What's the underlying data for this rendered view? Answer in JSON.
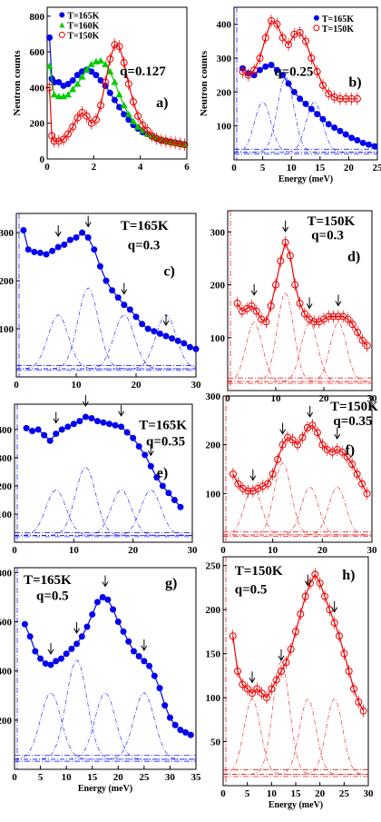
{
  "figure": {
    "ylabel": "Neutron counts",
    "xlabel": "Energy (meV)"
  },
  "chart_data": [
    {
      "panel": "a)",
      "type": "line",
      "annotations": [
        "q=0.127"
      ],
      "xlim": [
        0,
        6
      ],
      "ylim": [
        0,
        850
      ],
      "xticks": [
        0,
        2,
        4,
        6
      ],
      "yticks": [
        0,
        200,
        400,
        600,
        800
      ],
      "xlabel": "",
      "ylabel": "Neutron counts",
      "legend": "top-left",
      "series": [
        {
          "name": "T=165K",
          "color": "#0000ee",
          "marker": "filled-circle",
          "x": [
            0.1,
            0.2,
            0.3,
            0.5,
            0.7,
            0.9,
            1.1,
            1.3,
            1.5,
            1.7,
            1.9,
            2.1,
            2.3,
            2.5,
            2.7,
            2.9,
            3.1,
            3.3,
            3.5,
            3.7,
            3.9,
            4.1,
            4.3,
            4.5,
            4.7,
            4.9,
            5.1,
            5.3,
            5.5,
            5.7,
            5.9
          ],
          "y": [
            680,
            450,
            430,
            430,
            410,
            420,
            440,
            470,
            490,
            500,
            490,
            470,
            440,
            410,
            370,
            330,
            290,
            250,
            220,
            190,
            170,
            150,
            140,
            125,
            115,
            105,
            100,
            95,
            90,
            85,
            80
          ]
        },
        {
          "name": "T=160K",
          "color": "#00cc00",
          "marker": "filled-triangle",
          "x": [
            0.1,
            0.3,
            0.5,
            0.7,
            0.9,
            1.1,
            1.3,
            1.5,
            1.7,
            1.9,
            2.1,
            2.3,
            2.5,
            2.7,
            2.9,
            3.1,
            3.3,
            3.5,
            3.7,
            3.9,
            4.1,
            4.3,
            4.5,
            4.7,
            4.9,
            5.1,
            5.3,
            5.5,
            5.7,
            5.9
          ],
          "y": [
            520,
            360,
            350,
            350,
            360,
            390,
            420,
            460,
            500,
            530,
            545,
            550,
            530,
            490,
            430,
            360,
            300,
            250,
            210,
            180,
            160,
            140,
            130,
            120,
            110,
            100,
            95,
            90,
            85,
            80
          ]
        },
        {
          "name": "T=150K",
          "color": "#ee0000",
          "marker": "open-circle",
          "x": [
            0.1,
            0.2,
            0.3,
            0.5,
            0.7,
            0.9,
            1.1,
            1.3,
            1.5,
            1.7,
            1.9,
            2.1,
            2.3,
            2.5,
            2.7,
            2.9,
            3.1,
            3.3,
            3.5,
            3.7,
            3.9,
            4.1,
            4.3,
            4.5,
            4.7,
            4.9,
            5.1,
            5.3,
            5.5,
            5.7,
            5.9
          ],
          "y": [
            400,
            130,
            100,
            100,
            110,
            140,
            180,
            230,
            260,
            240,
            200,
            220,
            300,
            430,
            560,
            640,
            630,
            540,
            420,
            320,
            240,
            190,
            160,
            130,
            115,
            105,
            100,
            95,
            90,
            85,
            80
          ]
        }
      ]
    },
    {
      "panel": "b)",
      "type": "line",
      "annotations": [
        "q=0.25"
      ],
      "xlim": [
        0,
        25
      ],
      "ylim": [
        0,
        450
      ],
      "xticks": [
        0,
        5,
        10,
        15,
        20,
        25
      ],
      "yticks": [
        100,
        200,
        300,
        400
      ],
      "xlabel": "Energy (meV)",
      "ylabel": "Neutron counts",
      "legend": "top-right",
      "series": [
        {
          "name": "T=165K",
          "color": "#0000ee",
          "marker": "filled-circle",
          "x": [
            1.5,
            2.5,
            3.5,
            4.5,
            5.5,
            6.5,
            7.5,
            8.5,
            9.5,
            10.5,
            11.5,
            12.5,
            13.5,
            14.5,
            15.5,
            16.5,
            17.5,
            18.5,
            19.5,
            20.5,
            21.5,
            22.5,
            23.5,
            24.5
          ],
          "y": [
            270,
            255,
            250,
            265,
            275,
            280,
            265,
            250,
            225,
            200,
            180,
            165,
            150,
            135,
            120,
            105,
            95,
            85,
            75,
            65,
            58,
            50,
            45,
            40
          ]
        },
        {
          "name": "T=150K",
          "color": "#ee0000",
          "marker": "open-circle",
          "x": [
            1.5,
            2.5,
            3.5,
            4.5,
            5.5,
            6.5,
            7.5,
            8.5,
            9.5,
            10.5,
            11.5,
            12.5,
            13.5,
            14.5,
            15.5,
            16.5,
            17.5,
            18.5,
            19.5,
            20.5,
            21.5
          ],
          "y": [
            260,
            250,
            265,
            300,
            360,
            410,
            400,
            360,
            340,
            370,
            375,
            350,
            300,
            260,
            220,
            195,
            185,
            180,
            180,
            180,
            180
          ]
        }
      ]
    },
    {
      "panel": "c)",
      "type": "line",
      "annotations": [
        "T=165K",
        "q=0.3"
      ],
      "xlim": [
        0,
        30
      ],
      "ylim": [
        0,
        340
      ],
      "xticks": [
        0,
        10,
        20,
        30
      ],
      "yticks": [
        100,
        200,
        300
      ],
      "xlabel": "",
      "ylabel": "Neutron counts",
      "arrows_x": [
        7,
        12,
        18,
        25
      ],
      "series": [
        {
          "name": "",
          "color": "#0000ee",
          "marker": "filled-circle",
          "x": [
            1.2,
            2,
            3,
            4,
            5,
            6,
            7,
            8,
            9,
            10,
            11,
            12,
            13,
            14,
            15,
            16,
            17,
            18,
            19,
            20,
            21,
            22,
            23,
            24,
            25,
            26,
            27,
            28,
            29,
            30
          ],
          "y": [
            305,
            265,
            260,
            258,
            255,
            262,
            270,
            275,
            285,
            290,
            300,
            290,
            265,
            230,
            200,
            180,
            165,
            150,
            140,
            125,
            110,
            100,
            95,
            90,
            85,
            80,
            75,
            70,
            62,
            58
          ]
        }
      ]
    },
    {
      "panel": "d)",
      "type": "line",
      "annotations": [
        "T=150K",
        "q=0.3"
      ],
      "xlim": [
        0,
        30
      ],
      "ylim": [
        0,
        340
      ],
      "xticks": [
        0,
        10,
        20,
        30
      ],
      "yticks": [
        100,
        200,
        300
      ],
      "xlabel": "",
      "ylabel": "",
      "arrows_x": [
        5.5,
        12,
        17,
        23
      ],
      "series": [
        {
          "name": "",
          "color": "#ee0000",
          "marker": "open-circle",
          "x": [
            2,
            3,
            4,
            5,
            6,
            7,
            8,
            9,
            10,
            11,
            12,
            13,
            14,
            15,
            16,
            17,
            18,
            19,
            20,
            21,
            22,
            23,
            24,
            25,
            26,
            27,
            28,
            29
          ],
          "y": [
            165,
            150,
            155,
            160,
            150,
            135,
            130,
            160,
            200,
            245,
            280,
            255,
            200,
            165,
            145,
            135,
            130,
            130,
            135,
            140,
            140,
            140,
            140,
            135,
            125,
            110,
            95,
            85
          ]
        }
      ]
    },
    {
      "panel": "e)",
      "type": "line",
      "annotations": [
        "T=165K",
        "q=0.35"
      ],
      "xlim": [
        0,
        30
      ],
      "ylim": [
        0,
        490
      ],
      "xticks": [
        0,
        10,
        20,
        30
      ],
      "yticks": [
        100,
        200,
        300,
        400
      ],
      "xlabel": "",
      "ylabel": "Neutron counts",
      "arrows_x": [
        7,
        12,
        18,
        23
      ],
      "series": [
        {
          "name": "",
          "color": "#0000ee",
          "marker": "filled-circle",
          "x": [
            2,
            3,
            4,
            5,
            6,
            7,
            8,
            9,
            10,
            11,
            12,
            13,
            14,
            15,
            16,
            17,
            18,
            19,
            20,
            21,
            22,
            23,
            24,
            25,
            26,
            27,
            28
          ],
          "y": [
            405,
            395,
            400,
            380,
            360,
            385,
            400,
            410,
            420,
            430,
            445,
            440,
            430,
            425,
            420,
            415,
            410,
            390,
            370,
            340,
            310,
            270,
            230,
            200,
            175,
            150,
            125
          ]
        }
      ]
    },
    {
      "panel": "f)",
      "type": "line",
      "annotations": [
        "T=150K",
        "q=0.35"
      ],
      "xlim": [
        0,
        30
      ],
      "ylim": [
        0,
        300
      ],
      "xticks": [
        0,
        10,
        20,
        30
      ],
      "yticks": [
        100,
        200,
        300
      ],
      "xlabel": "",
      "ylabel": "",
      "arrows_x": [
        6,
        12,
        17.5,
        23
      ],
      "series": [
        {
          "name": "",
          "color": "#ee0000",
          "marker": "open-circle",
          "x": [
            2,
            3,
            4,
            5,
            6,
            7,
            8,
            9,
            10,
            11,
            12,
            13,
            14,
            15,
            16,
            17,
            18,
            19,
            20,
            21,
            22,
            23,
            24,
            25,
            26,
            27,
            28,
            29
          ],
          "y": [
            140,
            120,
            110,
            105,
            105,
            110,
            115,
            120,
            140,
            170,
            200,
            215,
            210,
            200,
            215,
            235,
            240,
            225,
            200,
            190,
            185,
            190,
            185,
            175,
            160,
            140,
            120,
            100
          ]
        }
      ]
    },
    {
      "panel": "g)",
      "type": "line",
      "annotations": [
        "T=165K",
        "q=0.5"
      ],
      "xlim": [
        0,
        35
      ],
      "ylim": [
        0,
        820
      ],
      "xticks": [
        0,
        5,
        10,
        15,
        20,
        25,
        30,
        35
      ],
      "yticks": [
        200,
        400,
        600,
        800
      ],
      "xlabel": "Energy (meV)",
      "ylabel": "Neutron counts",
      "arrows_x": [
        7,
        12,
        17.5,
        25
      ],
      "series": [
        {
          "name": "",
          "color": "#0000ee",
          "marker": "filled-circle",
          "x": [
            2,
            3,
            4,
            5,
            6,
            7,
            8,
            9,
            10,
            11,
            12,
            13,
            14,
            15,
            16,
            17,
            18,
            19,
            20,
            21,
            22,
            23,
            24,
            25,
            26,
            27,
            28,
            29,
            30,
            31,
            32,
            33,
            34
          ],
          "y": [
            590,
            540,
            480,
            450,
            430,
            425,
            440,
            450,
            470,
            490,
            510,
            540,
            580,
            630,
            680,
            700,
            690,
            650,
            600,
            560,
            520,
            480,
            460,
            440,
            420,
            380,
            330,
            260,
            210,
            180,
            160,
            150,
            140
          ]
        }
      ]
    },
    {
      "panel": "h)",
      "type": "line",
      "annotations": [
        "T=150K",
        "q=0.5"
      ],
      "xlim": [
        0,
        30
      ],
      "ylim": [
        0,
        260
      ],
      "xticks": [
        0,
        5,
        10,
        15,
        20,
        25,
        30
      ],
      "yticks": [
        50,
        100,
        150,
        200,
        250
      ],
      "xlabel": "Energy (meV)",
      "ylabel": "",
      "arrows_x": [
        6,
        12,
        17.5,
        23
      ],
      "series": [
        {
          "name": "",
          "color": "#ee0000",
          "marker": "open-circle",
          "x": [
            2,
            3,
            4,
            5,
            6,
            7,
            8,
            9,
            10,
            11,
            12,
            13,
            14,
            15,
            16,
            17,
            18,
            19,
            20,
            21,
            22,
            23,
            24,
            25,
            26,
            27,
            28,
            29
          ],
          "y": [
            170,
            130,
            115,
            110,
            105,
            110,
            105,
            100,
            110,
            120,
            130,
            140,
            155,
            175,
            195,
            215,
            230,
            240,
            230,
            215,
            200,
            185,
            170,
            150,
            130,
            110,
            95,
            85
          ]
        }
      ]
    }
  ]
}
